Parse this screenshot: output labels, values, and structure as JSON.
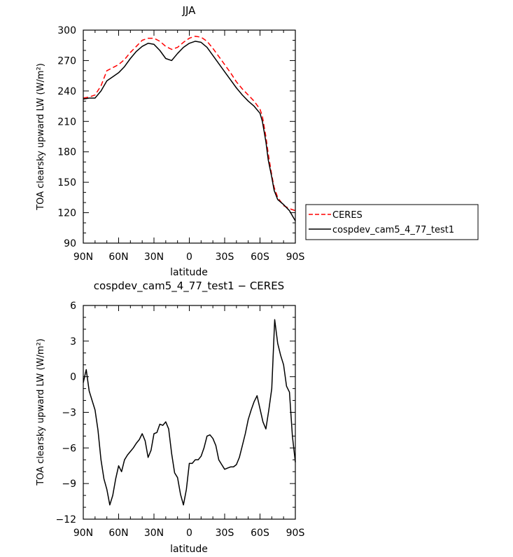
{
  "chart_data": [
    {
      "type": "line",
      "title": "JJA",
      "xlabel": "latitude",
      "ylabel": "TOA clearsky upward LW (W/m²)",
      "xlim": [
        90,
        -90
      ],
      "ylim": [
        90,
        300
      ],
      "x_ticks": [
        90,
        60,
        30,
        0,
        -30,
        -60,
        -90
      ],
      "x_tick_labels": [
        "90N",
        "60N",
        "30N",
        "0",
        "30S",
        "60S",
        "90S"
      ],
      "y_ticks": [
        90,
        120,
        150,
        180,
        210,
        240,
        270,
        300
      ],
      "legend": {
        "placement": "right-outside"
      },
      "series": [
        {
          "name": "CERES",
          "color": "#ff0000",
          "dash": true,
          "x": [
            90,
            85,
            80,
            75,
            70,
            65,
            60,
            55,
            50,
            45,
            40,
            35,
            30,
            25,
            20,
            15,
            10,
            5,
            0,
            -5,
            -10,
            -15,
            -20,
            -25,
            -30,
            -35,
            -40,
            -45,
            -50,
            -55,
            -60,
            -62,
            -65,
            -67,
            -70,
            -72,
            -75,
            -80,
            -85,
            -90
          ],
          "y": [
            233,
            234,
            236,
            245,
            260,
            263,
            266,
            271,
            278,
            284,
            290,
            292,
            292,
            289,
            284,
            281,
            283,
            288,
            292,
            294,
            293,
            289,
            282,
            274,
            266,
            258,
            249,
            242,
            236,
            230,
            222,
            215,
            195,
            178,
            157,
            145,
            135,
            127,
            124,
            122
          ]
        },
        {
          "name": "cospdev_cam5_4_77_test1",
          "color": "#000000",
          "dash": false,
          "x": [
            90,
            85,
            80,
            75,
            70,
            65,
            60,
            55,
            50,
            45,
            40,
            35,
            30,
            25,
            20,
            15,
            10,
            5,
            0,
            -5,
            -10,
            -15,
            -20,
            -25,
            -30,
            -35,
            -40,
            -45,
            -50,
            -55,
            -60,
            -62,
            -65,
            -67,
            -70,
            -72,
            -75,
            -80,
            -85,
            -90
          ],
          "y": [
            232,
            233,
            233,
            240,
            250,
            254,
            258,
            264,
            272,
            279,
            284,
            287,
            286,
            280,
            272,
            270,
            277,
            283,
            287,
            289,
            288,
            283,
            275,
            267,
            259,
            251,
            243,
            236,
            230,
            225,
            218,
            210,
            190,
            172,
            155,
            142,
            133,
            128,
            122,
            112
          ]
        }
      ]
    },
    {
      "type": "line",
      "title": "cospdev_cam5_4_77_test1 − CERES",
      "xlabel": "latitude",
      "ylabel": "TOA clearsky upward LW (W/m²)",
      "xlim": [
        90,
        -90
      ],
      "ylim": [
        -12,
        6
      ],
      "x_ticks": [
        90,
        60,
        30,
        0,
        -30,
        -60,
        -90
      ],
      "x_tick_labels": [
        "90N",
        "60N",
        "30N",
        "0",
        "30S",
        "60S",
        "90S"
      ],
      "y_ticks": [
        -12,
        -9,
        -6,
        -3,
        0,
        3,
        6
      ],
      "series": [
        {
          "name": "",
          "color": "#000000",
          "dash": false,
          "x": [
            90,
            87.5,
            85,
            82.5,
            80,
            77.5,
            75,
            72.5,
            70,
            67.5,
            65,
            62.5,
            60,
            57.5,
            55,
            52.5,
            50,
            47.5,
            45,
            42.5,
            40,
            37.5,
            35,
            32.5,
            30,
            27.5,
            25,
            22.5,
            20,
            17.5,
            15,
            12.5,
            10,
            7.5,
            5,
            2.5,
            0,
            -2.5,
            -5,
            -7.5,
            -10,
            -12.5,
            -15,
            -17.5,
            -20,
            -22.5,
            -25,
            -27.5,
            -30,
            -32.5,
            -35,
            -37.5,
            -40,
            -42.5,
            -45,
            -47.5,
            -50,
            -52.5,
            -55,
            -57.5,
            -60,
            -62.5,
            -65,
            -67.5,
            -70,
            -72.5,
            -75,
            -77.5,
            -80,
            -82.5,
            -85,
            -87.5,
            -90
          ],
          "y": [
            -0.5,
            0.6,
            -1.2,
            -2.0,
            -2.8,
            -4.5,
            -7.0,
            -8.6,
            -9.5,
            -10.8,
            -10.0,
            -8.6,
            -7.5,
            -8.0,
            -7.0,
            -6.6,
            -6.3,
            -6.0,
            -5.6,
            -5.3,
            -4.8,
            -5.4,
            -6.8,
            -6.2,
            -4.8,
            -4.7,
            -4.0,
            -4.1,
            -3.8,
            -4.4,
            -6.5,
            -8.1,
            -8.5,
            -9.9,
            -10.8,
            -9.5,
            -7.3,
            -7.3,
            -7.0,
            -7.0,
            -6.7,
            -6.0,
            -5.0,
            -4.9,
            -5.2,
            -5.8,
            -7.0,
            -7.4,
            -7.8,
            -7.7,
            -7.6,
            -7.6,
            -7.4,
            -6.8,
            -5.8,
            -4.8,
            -3.6,
            -2.8,
            -2.1,
            -1.6,
            -2.7,
            -3.8,
            -4.4,
            -2.8,
            -1.0,
            4.8,
            2.8,
            1.8,
            1.0,
            -0.8,
            -1.3,
            -5.0,
            -7.2
          ]
        }
      ]
    }
  ]
}
